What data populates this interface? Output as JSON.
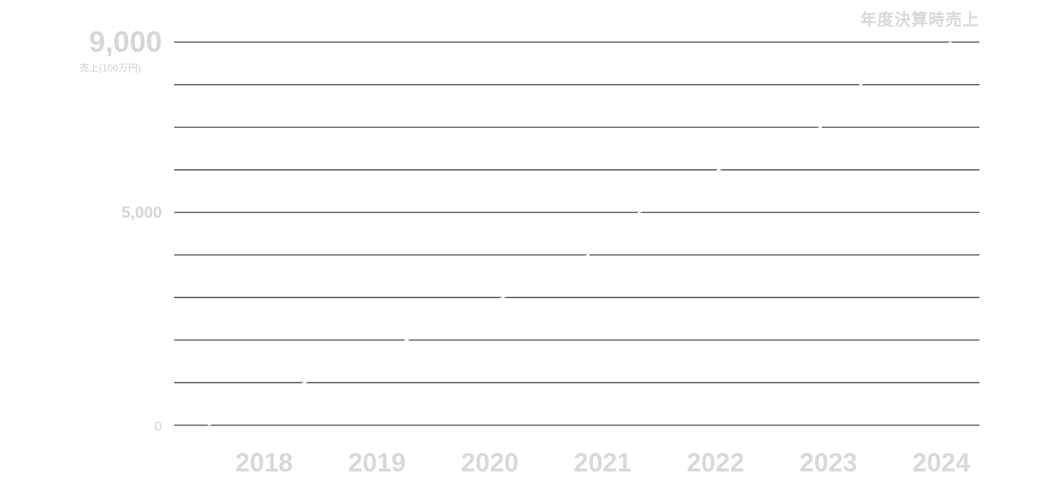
{
  "chart_data": {
    "type": "line",
    "title": "年度決算時売上",
    "ylabel": "売上(100万円)",
    "xlabel": "",
    "categories": [
      "2018",
      "2019",
      "2020",
      "2021",
      "2022",
      "2023",
      "2024"
    ],
    "x": [
      2017.55,
      2018.4,
      2019.3,
      2020.15,
      2020.9,
      2021.35,
      2022.05,
      2022.95,
      2023.3,
      2024.1
    ],
    "values": [
      0,
      1000,
      2000,
      3000,
      4000,
      5000,
      6000,
      7000,
      8000,
      9000
    ],
    "yticks": [
      "0",
      "5,000",
      "9,000"
    ],
    "ylim": [
      0,
      9000
    ],
    "grid": true,
    "line_color": "#ffffff",
    "grid_color": "#3f3f3f",
    "label_color": "#d6d6d6"
  }
}
